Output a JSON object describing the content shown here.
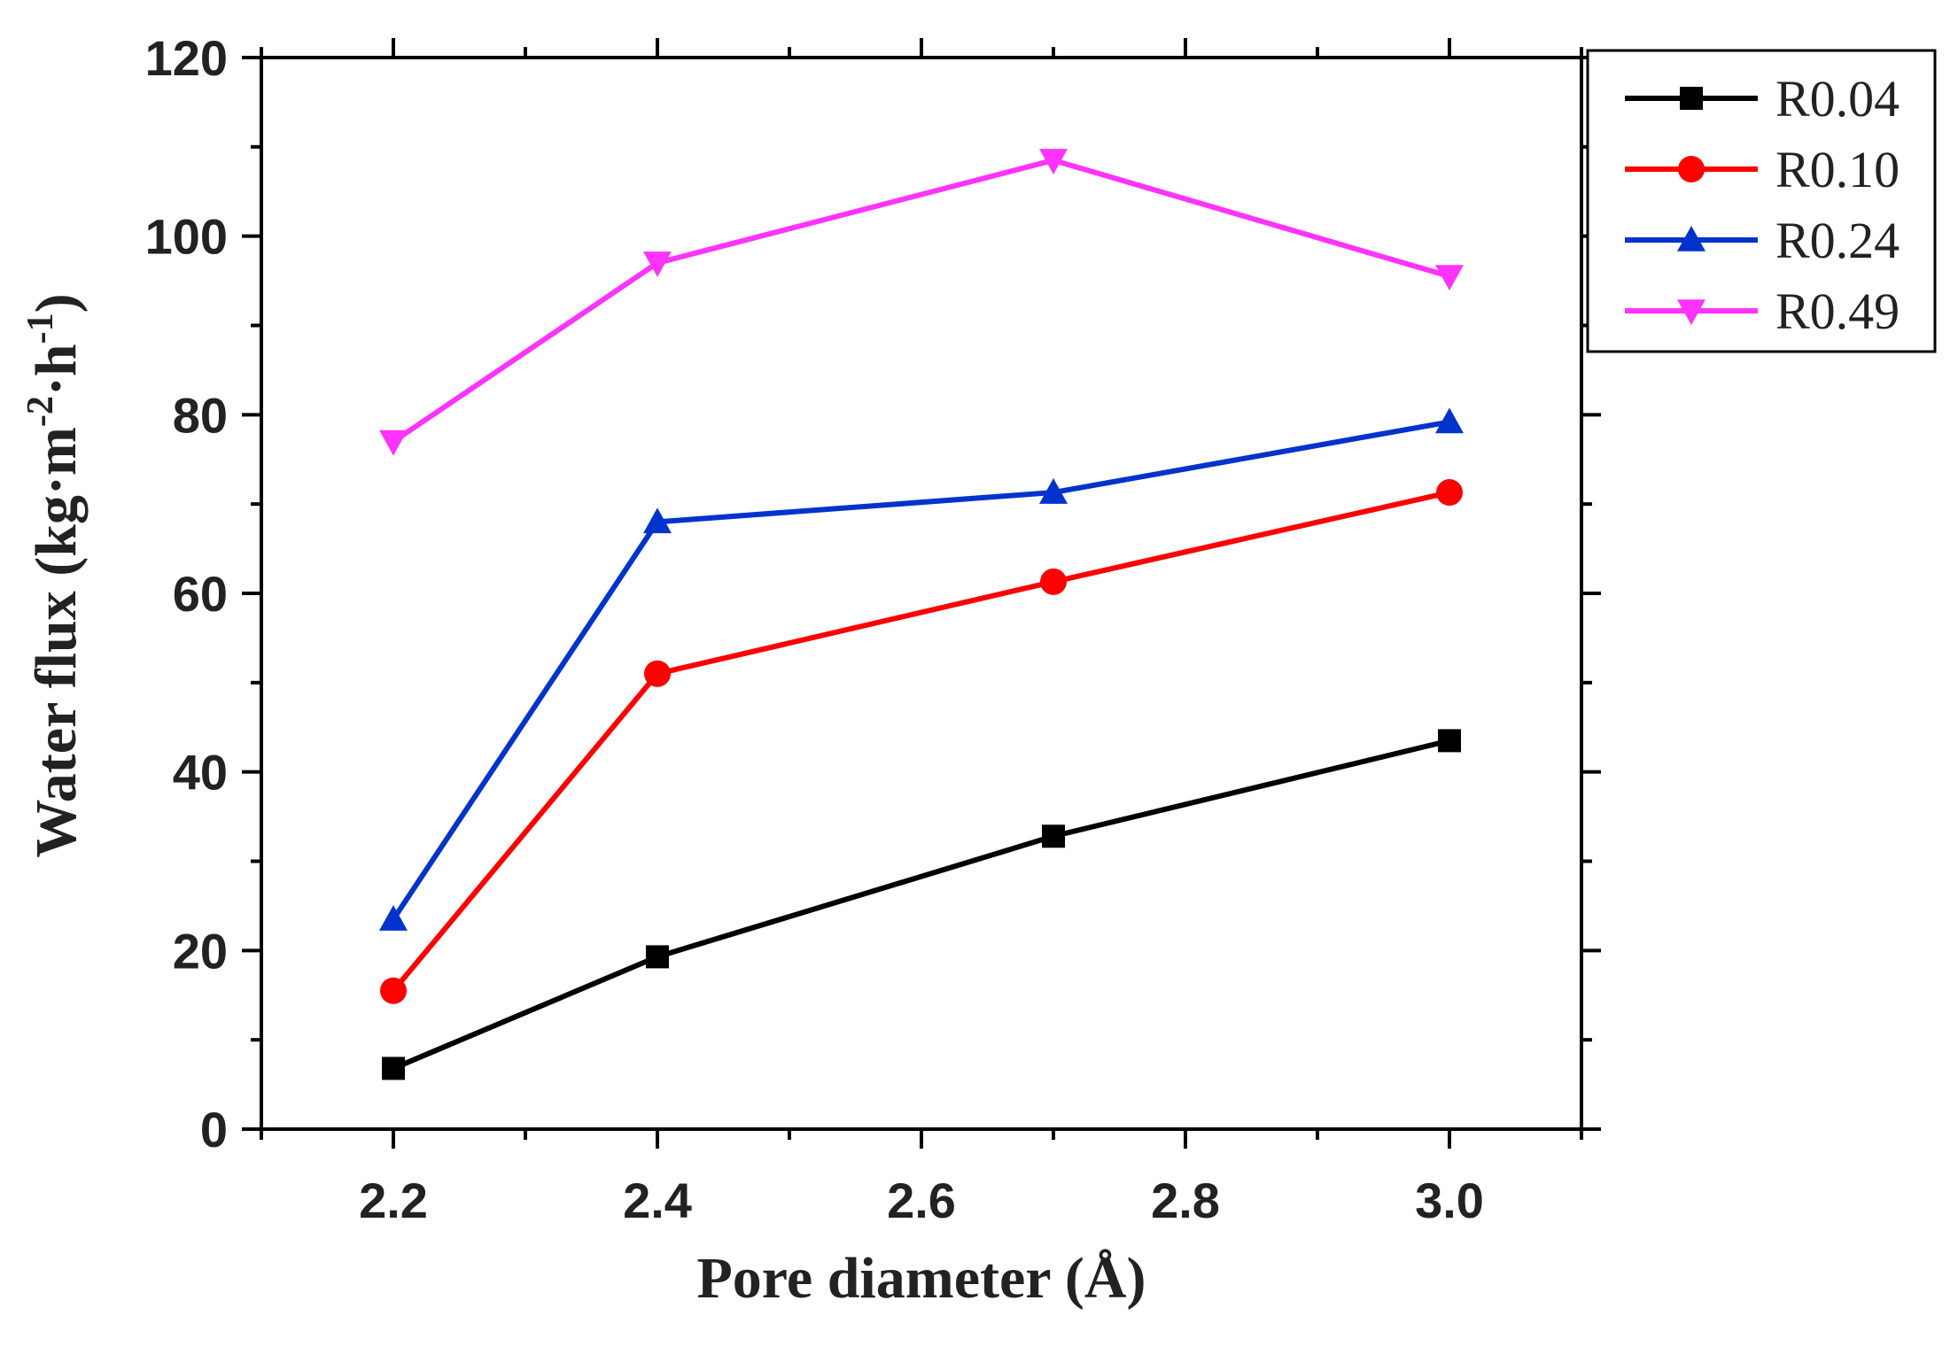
{
  "chart_data": {
    "type": "line",
    "title": "",
    "xlabel": "Pore diameter (Å)",
    "ylabel_parts": {
      "base": "Water flux (kg·m",
      "exp1": "-2",
      "mid": "·h",
      "exp2": "-1",
      "end": ")"
    },
    "xlim": [
      2.1,
      3.1
    ],
    "ylim": [
      0,
      120
    ],
    "x_ticks": [
      2.2,
      2.4,
      2.6,
      2.8,
      3.0
    ],
    "x_tick_labels": [
      "2.2",
      "2.4",
      "2.6",
      "2.8",
      "3.0"
    ],
    "y_ticks": [
      0,
      20,
      40,
      60,
      80,
      100,
      120
    ],
    "y_tick_labels": [
      "0",
      "20",
      "40",
      "60",
      "80",
      "100",
      "120"
    ],
    "x": [
      2.2,
      2.4,
      2.7,
      3.0
    ],
    "legend_position": "outside-top-right",
    "grid": false,
    "series": [
      {
        "name": "R0.04",
        "marker": "square",
        "color": "#000000",
        "values": [
          6.8,
          19.3,
          32.8,
          43.5
        ]
      },
      {
        "name": "R0.10",
        "marker": "circle",
        "color": "#ff0000",
        "values": [
          15.5,
          51.0,
          61.3,
          71.3
        ]
      },
      {
        "name": "R0.24",
        "marker": "triangle-up",
        "color": "#0033cc",
        "values": [
          23.5,
          68.0,
          71.3,
          79.2
        ]
      },
      {
        "name": "R0.49",
        "marker": "triangle-down",
        "color": "#ff33ff",
        "values": [
          77.0,
          97.0,
          108.5,
          95.5
        ]
      }
    ]
  }
}
